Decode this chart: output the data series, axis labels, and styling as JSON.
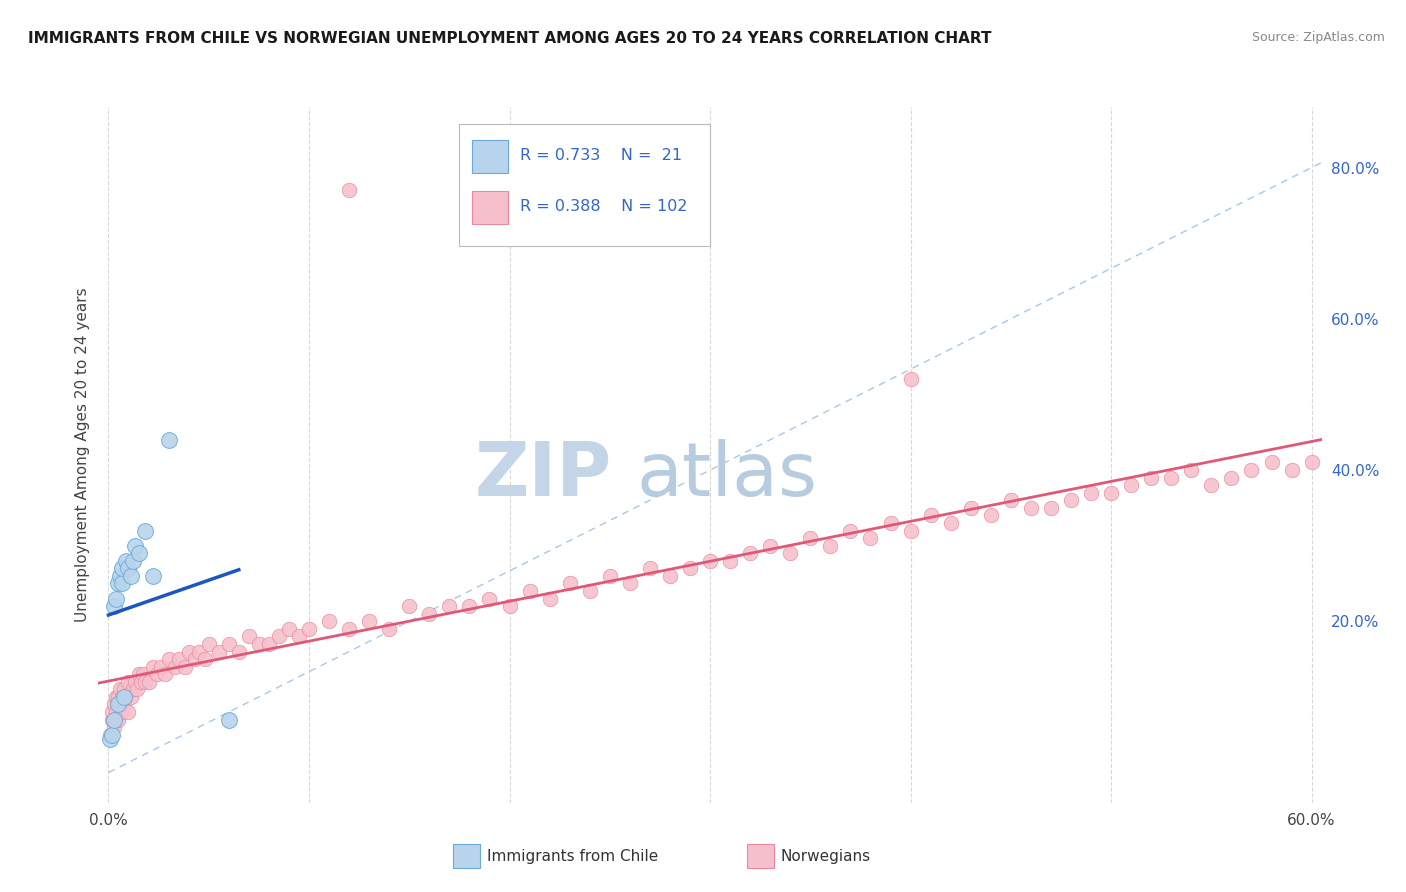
{
  "title": "IMMIGRANTS FROM CHILE VS NORWEGIAN UNEMPLOYMENT AMONG AGES 20 TO 24 YEARS CORRELATION CHART",
  "source": "Source: ZipAtlas.com",
  "ylabel": "Unemployment Among Ages 20 to 24 years",
  "xlim": [
    -0.005,
    0.605
  ],
  "ylim": [
    -0.04,
    0.88
  ],
  "xtick_positions": [
    0.0,
    0.1,
    0.2,
    0.3,
    0.4,
    0.5,
    0.6
  ],
  "xticklabels": [
    "0.0%",
    "",
    "",
    "",
    "",
    "",
    "60.0%"
  ],
  "ytick_positions": [
    0.0,
    0.2,
    0.4,
    0.6,
    0.8
  ],
  "yticklabels_right": [
    "",
    "20.0%",
    "40.0%",
    "60.0%",
    "80.0%"
  ],
  "r_chile": 0.733,
  "n_chile": 21,
  "r_norwegian": 0.388,
  "n_norwegian": 102,
  "color_chile_fill": "#b8d4ed",
  "color_chile_edge": "#6aaad4",
  "color_norwegian_fill": "#f5c0cc",
  "color_norwegian_edge": "#e8889a",
  "color_trend_chile": "#1a56c4",
  "color_trend_norwegian": "#e05878",
  "color_diagonal": "#7aaadd",
  "color_yticklabels": "#3366cc",
  "watermark_zip_color": "#c5d5e8",
  "watermark_atlas_color": "#b8cce0",
  "grid_color": "#d8d8d8",
  "chile_x": [
    0.001,
    0.002,
    0.003,
    0.003,
    0.004,
    0.005,
    0.005,
    0.006,
    0.007,
    0.007,
    0.008,
    0.009,
    0.01,
    0.011,
    0.012,
    0.013,
    0.015,
    0.018,
    0.022,
    0.03,
    0.06
  ],
  "chile_y": [
    0.045,
    0.05,
    0.07,
    0.22,
    0.23,
    0.09,
    0.25,
    0.26,
    0.25,
    0.27,
    0.1,
    0.28,
    0.27,
    0.26,
    0.28,
    0.3,
    0.29,
    0.32,
    0.26,
    0.44,
    0.07
  ],
  "norwegian_x": [
    0.001,
    0.002,
    0.002,
    0.003,
    0.003,
    0.004,
    0.004,
    0.005,
    0.005,
    0.006,
    0.006,
    0.007,
    0.007,
    0.008,
    0.008,
    0.009,
    0.01,
    0.01,
    0.011,
    0.012,
    0.013,
    0.014,
    0.015,
    0.016,
    0.017,
    0.018,
    0.02,
    0.022,
    0.024,
    0.026,
    0.028,
    0.03,
    0.033,
    0.035,
    0.038,
    0.04,
    0.043,
    0.045,
    0.048,
    0.05,
    0.055,
    0.06,
    0.065,
    0.07,
    0.075,
    0.08,
    0.085,
    0.09,
    0.095,
    0.1,
    0.11,
    0.12,
    0.13,
    0.14,
    0.15,
    0.16,
    0.17,
    0.18,
    0.19,
    0.2,
    0.21,
    0.22,
    0.23,
    0.24,
    0.25,
    0.26,
    0.27,
    0.28,
    0.29,
    0.3,
    0.31,
    0.32,
    0.33,
    0.34,
    0.35,
    0.36,
    0.37,
    0.38,
    0.39,
    0.4,
    0.41,
    0.42,
    0.43,
    0.44,
    0.45,
    0.46,
    0.47,
    0.48,
    0.49,
    0.5,
    0.51,
    0.52,
    0.53,
    0.54,
    0.55,
    0.56,
    0.57,
    0.58,
    0.59,
    0.6,
    0.12,
    0.4
  ],
  "norwegian_y": [
    0.05,
    0.07,
    0.08,
    0.06,
    0.09,
    0.08,
    0.1,
    0.07,
    0.1,
    0.09,
    0.11,
    0.08,
    0.1,
    0.09,
    0.11,
    0.1,
    0.08,
    0.12,
    0.1,
    0.11,
    0.12,
    0.11,
    0.13,
    0.12,
    0.13,
    0.12,
    0.12,
    0.14,
    0.13,
    0.14,
    0.13,
    0.15,
    0.14,
    0.15,
    0.14,
    0.16,
    0.15,
    0.16,
    0.15,
    0.17,
    0.16,
    0.17,
    0.16,
    0.18,
    0.17,
    0.17,
    0.18,
    0.19,
    0.18,
    0.19,
    0.2,
    0.19,
    0.2,
    0.19,
    0.22,
    0.21,
    0.22,
    0.22,
    0.23,
    0.22,
    0.24,
    0.23,
    0.25,
    0.24,
    0.26,
    0.25,
    0.27,
    0.26,
    0.27,
    0.28,
    0.28,
    0.29,
    0.3,
    0.29,
    0.31,
    0.3,
    0.32,
    0.31,
    0.33,
    0.32,
    0.34,
    0.33,
    0.35,
    0.34,
    0.36,
    0.35,
    0.35,
    0.36,
    0.37,
    0.37,
    0.38,
    0.39,
    0.39,
    0.4,
    0.38,
    0.39,
    0.4,
    0.41,
    0.4,
    0.41,
    0.77,
    0.52
  ]
}
